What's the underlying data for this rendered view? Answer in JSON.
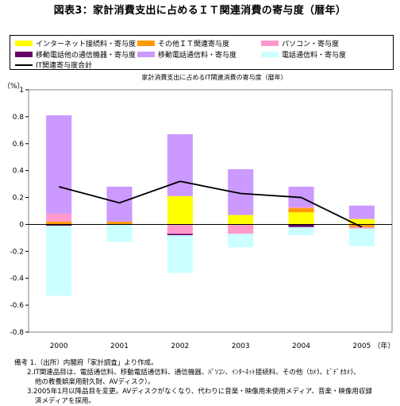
{
  "figure_title": "図表3：家計消費支出に占めるＩＴ関連消費の寄与度（暦年）",
  "chart_subtitle": "家計消費支出に占めるIT関連消費の寄与度（暦年）",
  "notes": [
    "備考 1.（出所）内閣府「家計調査」より作成。",
    "2.IT関連品目は、電話通信料、移動電話通信料、通信機器、ﾊﾟｿｺﾝ、ｲﾝﾀｰﾈｯﾄ接続料、その他（ｶﾒﾗ、ﾋﾞﾃﾞｵｶﾒﾗ、",
    "他の教養娯楽用耐久財、AVディスク）。",
    "3.2005年1月以降品目を変更。AVディスクがなくなり、代わりに音楽・映像用未使用メディア、音楽・映像用収録",
    "済メディアを採用。"
  ],
  "chart_data": {
    "type": "bar",
    "stacked": true,
    "categories": [
      "2000",
      "2001",
      "2002",
      "2003",
      "2004",
      "2005"
    ],
    "x_unit_label": "（年）",
    "y_unit_label": "（%）",
    "ylim": [
      -0.8,
      1.0
    ],
    "y_ticks": [
      1,
      0.8,
      0.6,
      0.4,
      0.2,
      0,
      -0.2,
      -0.4,
      -0.6,
      -0.8
    ],
    "series": [
      {
        "name": "インターネット接続料・寄与度",
        "color": "#ffff00",
        "values": [
          0.0,
          0.0,
          0.21,
          0.07,
          0.09,
          0.04
        ]
      },
      {
        "name": "その他ＩＴ関連寄与度",
        "color": "#ff9900",
        "values": [
          0.02,
          0.02,
          0.0,
          0.0,
          0.03,
          -0.02
        ]
      },
      {
        "name": "パソコン・寄与度",
        "color": "#ff99cc",
        "values": [
          0.06,
          0.0,
          -0.07,
          -0.07,
          0.01,
          -0.01
        ]
      },
      {
        "name": "移動電話他の通信機器・寄与度",
        "color": "#660066",
        "values": [
          -0.01,
          0.0,
          -0.01,
          0.0,
          -0.02,
          0.0
        ]
      },
      {
        "name": "移動電話通信料・寄与度",
        "color": "#cc99ff",
        "values": [
          0.73,
          0.26,
          0.46,
          0.34,
          0.15,
          0.1
        ]
      },
      {
        "name": "電話通信料・寄与度",
        "color": "#ccffff",
        "values": [
          -0.52,
          -0.13,
          -0.28,
          -0.1,
          -0.06,
          -0.13
        ]
      }
    ],
    "line": {
      "name": "IT関連寄与度合計",
      "color": "#000000",
      "values": [
        0.28,
        0.16,
        0.32,
        0.23,
        0.2,
        -0.02
      ]
    },
    "legend_position": "top",
    "grid": false
  }
}
